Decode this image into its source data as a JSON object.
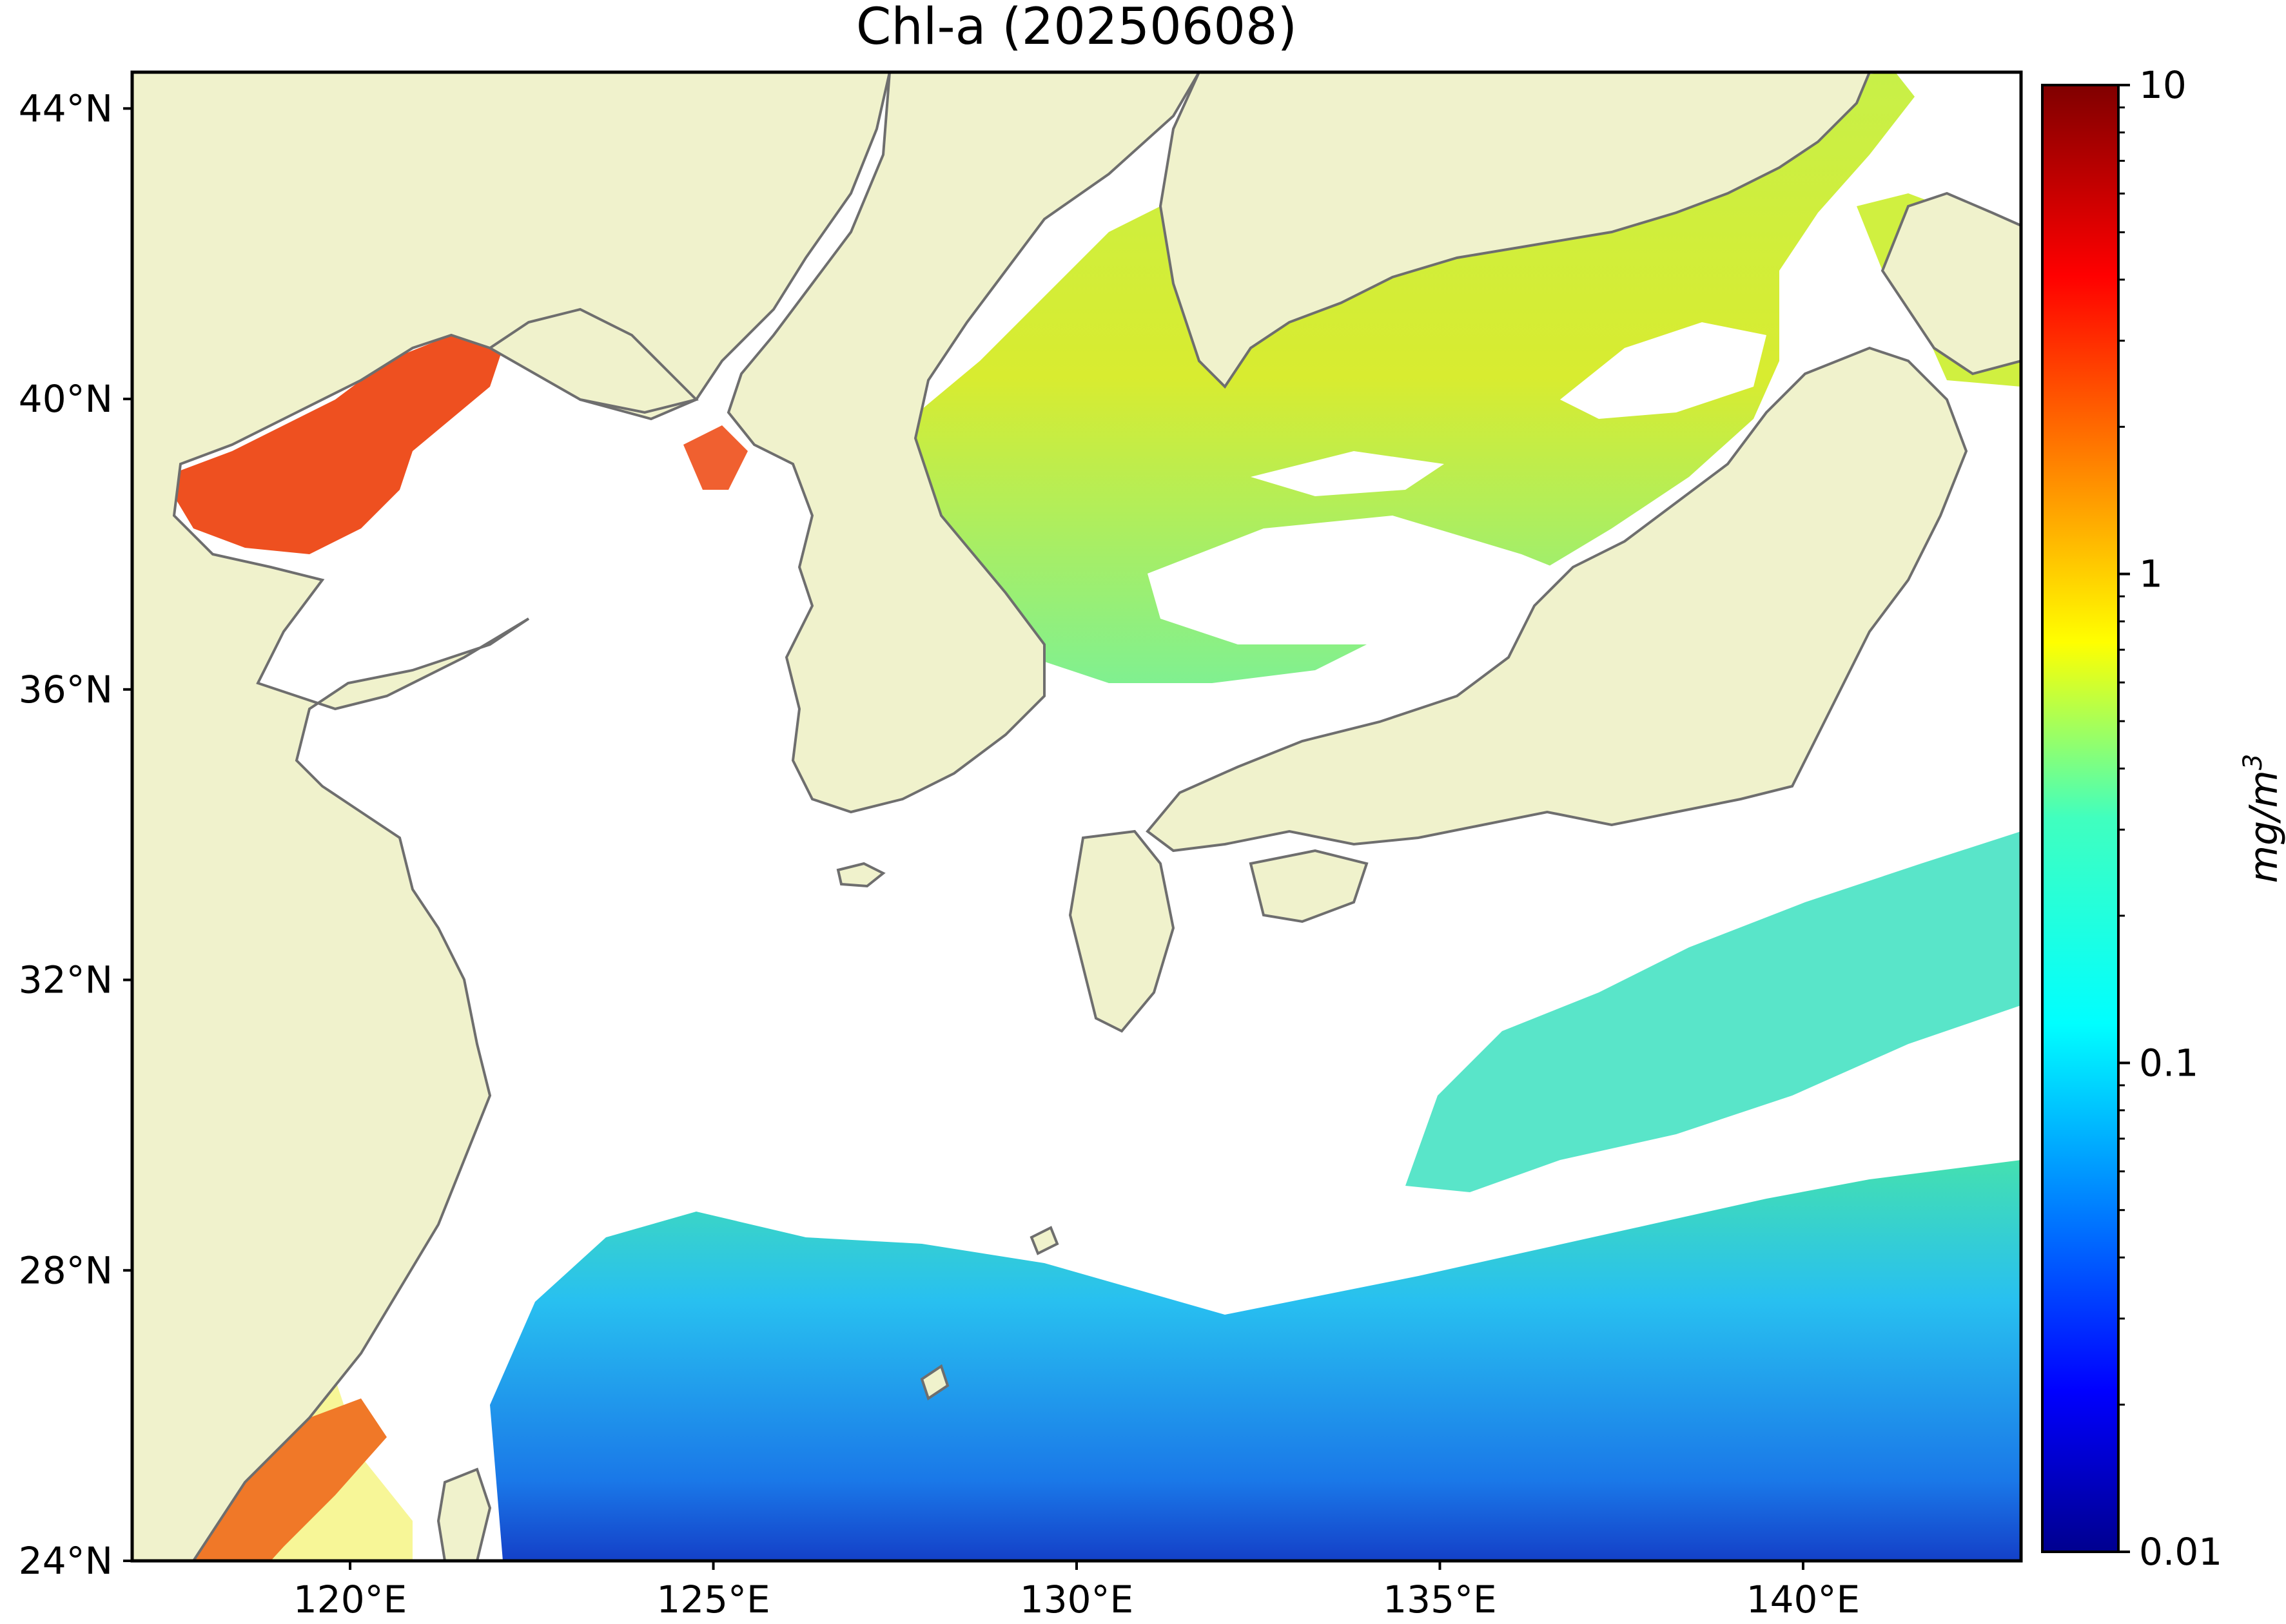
{
  "title": "Chl-a (20250608)",
  "map": {
    "lat_labels": [
      "44°N",
      "40°N",
      "36°N",
      "32°N",
      "28°N",
      "24°N"
    ],
    "lat_values": [
      44,
      40,
      36,
      32,
      28,
      24
    ],
    "lon_labels": [
      "120°E",
      "125°E",
      "130°E",
      "135°E",
      "140°E"
    ],
    "lon_values": [
      120,
      125,
      130,
      135,
      140
    ],
    "lon_range": [
      117,
      143
    ],
    "lat_range": [
      24,
      44.5
    ],
    "land_color": "#f0f2cc",
    "coastline_color": "#6e6e6e",
    "cloud_color": "#ffffff"
  },
  "colorbar": {
    "labels": [
      "10",
      "1",
      "0.1",
      "0.01"
    ],
    "values": [
      10,
      1,
      0.1,
      0.01
    ],
    "scale": "log",
    "colormap": "jet",
    "unit_label": "mg/m",
    "unit_superscript": "3"
  }
}
